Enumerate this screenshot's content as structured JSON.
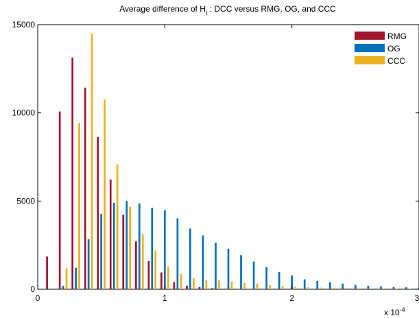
{
  "chart_data": {
    "type": "bar",
    "title_main": "Average difference of H",
    "title_sub": "t",
    "title_rest": " : DCC versus RMG, OG, and CCC",
    "x_multiplier": "x 10",
    "x_exponent": "-4",
    "xlim": [
      0,
      3
    ],
    "ylim": [
      0,
      15000
    ],
    "xticks": [
      "0",
      "1",
      "2",
      "3"
    ],
    "yticks": [
      "0",
      "5000",
      "10000",
      "15000"
    ],
    "legend_position": "top-right",
    "x": [
      0.1,
      0.2,
      0.3,
      0.4,
      0.5,
      0.6,
      0.7,
      0.8,
      0.9,
      1.0,
      1.1,
      1.2,
      1.3,
      1.4,
      1.5,
      1.6,
      1.7,
      1.8,
      1.9,
      2.0,
      2.1,
      2.2,
      2.3,
      2.4,
      2.5,
      2.6,
      2.7,
      2.8,
      2.9,
      3.0
    ],
    "series": [
      {
        "name": "RMG",
        "color": "#a2142f",
        "values": [
          1850,
          10080,
          13130,
          11430,
          8630,
          6220,
          4220,
          2710,
          1600,
          950,
          400,
          200,
          120,
          60,
          30,
          15,
          8,
          5,
          3,
          2,
          1,
          1,
          0,
          0,
          0,
          0,
          0,
          0,
          0,
          0
        ]
      },
      {
        "name": "OG",
        "color": "#0072bd",
        "values": [
          0,
          200,
          1220,
          2830,
          4280,
          4900,
          5000,
          4870,
          4620,
          4470,
          4020,
          3440,
          3050,
          2630,
          2300,
          1930,
          1570,
          1250,
          980,
          780,
          560,
          470,
          390,
          320,
          250,
          200,
          160,
          130,
          110,
          80
        ]
      },
      {
        "name": "CCC",
        "color": "#edb120",
        "values": [
          0,
          1180,
          9430,
          14500,
          10750,
          7080,
          4680,
          3120,
          2200,
          1290,
          850,
          630,
          520,
          500,
          440,
          360,
          320,
          230,
          180,
          140,
          110,
          90,
          80,
          70,
          60,
          50,
          45,
          40,
          35,
          30
        ]
      }
    ]
  }
}
